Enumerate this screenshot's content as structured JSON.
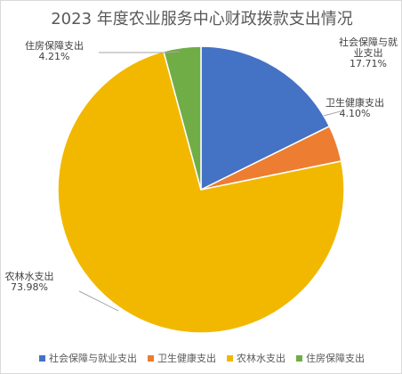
{
  "chart_data": {
    "type": "pie",
    "title": "2023 年度农业服务中心财政拨款支出情况",
    "categories": [
      "社会保障与就业支出",
      "卫生健康支出",
      "农林水支出",
      "住房保障支出"
    ],
    "values": [
      17.71,
      4.1,
      73.98,
      4.21
    ],
    "data_labels": [
      {
        "name_lines": [
          "社会保障与就",
          "业支出"
        ],
        "value": "17.71%"
      },
      {
        "name_lines": [
          "卫生健康支出"
        ],
        "value": "4.10%"
      },
      {
        "name_lines": [
          "农林水支出"
        ],
        "value": "73.98%"
      },
      {
        "name_lines": [
          "住房保障支出"
        ],
        "value": "4.21%"
      }
    ],
    "colors": [
      "#4472C4",
      "#ED7D31",
      "#F2B800",
      "#70AD47"
    ],
    "legend_position": "bottom"
  }
}
